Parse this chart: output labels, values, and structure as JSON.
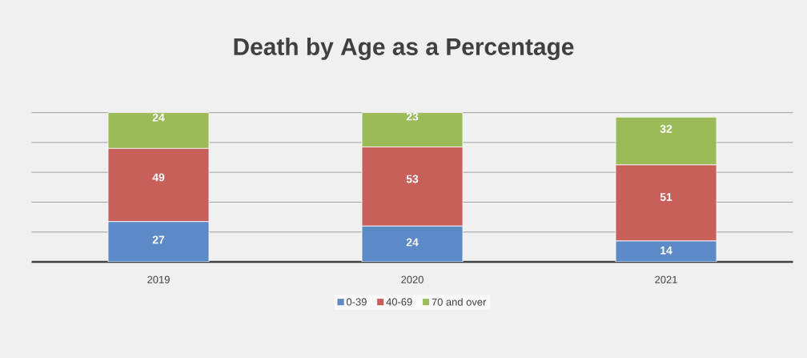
{
  "chart_data": {
    "type": "bar",
    "title": "Death by Age as a Percentage",
    "stacked": true,
    "categories": [
      "2019",
      "2020",
      "2021"
    ],
    "series": [
      {
        "name": "0-39",
        "color": "#5b8ac6",
        "values": [
          27,
          24,
          14
        ]
      },
      {
        "name": "40-69",
        "color": "#c75f5b",
        "values": [
          49,
          53,
          51
        ]
      },
      {
        "name": "70 and over",
        "color": "#9bbb59",
        "values": [
          24,
          23,
          32
        ]
      }
    ],
    "grid": "y",
    "legend": "bottom",
    "data_labels": true,
    "tick_labels": "x"
  }
}
